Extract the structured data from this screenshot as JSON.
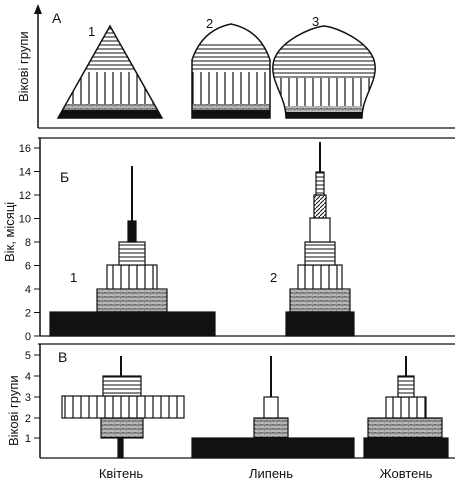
{
  "panel_a": {
    "letter": "А",
    "ylabel": "Вікові групи",
    "shape_numbers": [
      "1",
      "2",
      "3"
    ]
  },
  "panel_b": {
    "letter": "Б",
    "ylabel": "Вік, місяці",
    "y_ticks": [
      "16",
      "14",
      "12",
      "10",
      "8",
      "6",
      "4",
      "2",
      "0"
    ],
    "series_numbers": [
      "1",
      "2"
    ]
  },
  "panel_c": {
    "letter": "В",
    "ylabel": "Вікові групи",
    "y_ticks": [
      "5",
      "4",
      "3",
      "2",
      "1"
    ]
  },
  "x_labels": [
    "Квітень",
    "Липень",
    "Жовтень"
  ],
  "colors": {
    "ink": "#111111",
    "paper": "#ffffff"
  }
}
